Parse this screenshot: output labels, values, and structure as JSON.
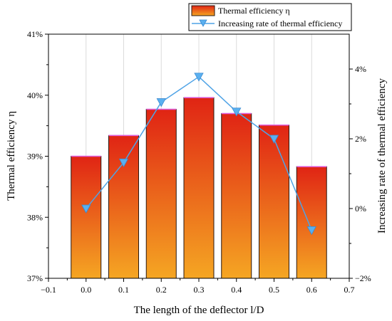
{
  "chart_data": {
    "type": "bar",
    "xlabel": "The length of the deflector l/D",
    "ylabel_left": "Thermal efficiency η",
    "ylabel_right": "Increasing rate of thermal efficiency",
    "x": [
      0.0,
      0.1,
      0.2,
      0.3,
      0.4,
      0.5,
      0.6
    ],
    "x_ticks": [
      "−0.1",
      "0.0",
      "0.1",
      "0.2",
      "0.3",
      "0.4",
      "0.5",
      "0.6",
      "0.7"
    ],
    "xlim": [
      -0.1,
      0.7
    ],
    "y_left_ticks": [
      "37%",
      "38%",
      "39%",
      "40%",
      "41%"
    ],
    "ylim_left": [
      37,
      41
    ],
    "y_right_ticks": [
      "−2%",
      "0%",
      "2%",
      "4%"
    ],
    "ylim_right": [
      -2,
      5
    ],
    "grid": "vertical",
    "legend_position": "top-right",
    "series": [
      {
        "name": "Thermal efficiency η",
        "type": "bar",
        "axis": "left",
        "values": [
          39.0,
          39.34,
          39.77,
          39.96,
          39.7,
          39.51,
          38.83
        ]
      },
      {
        "name": "Increasing rate of thermal efficiency",
        "type": "line",
        "axis": "right",
        "marker": "triangle-down",
        "values": [
          0.0,
          1.32,
          3.05,
          3.78,
          2.78,
          2.0,
          -0.62
        ]
      }
    ],
    "colors": {
      "bar_top": "#e02414",
      "bar_bottom": "#f5a623",
      "bar_edge": "#2a1810",
      "bar_highlight": "#e060e0",
      "line": "#4fa3e6",
      "marker": "#5ab0f0",
      "grid": "#dcdcdc"
    }
  }
}
